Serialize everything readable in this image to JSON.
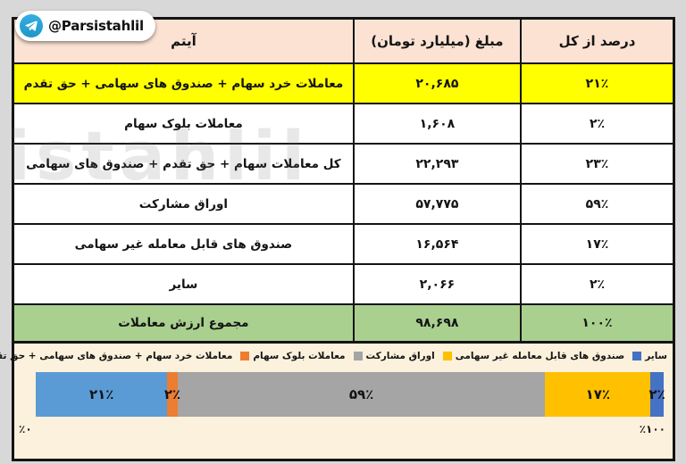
{
  "badge": {
    "handle": "@Parsistahlil"
  },
  "watermark": "istahlil",
  "colors": {
    "header_bg": "#FBE2D3",
    "highlight_row_bg": "#FFFF00",
    "total_row_bg": "#A9D08E",
    "chart_bg": "#FCF1DC",
    "page_bg": "#D8D8D8",
    "telegram_blue": "#2AA8DD"
  },
  "table": {
    "headers": {
      "item": "آیتم",
      "amount": "مبلغ (میلیارد تومان)",
      "percent": "درصد از کل"
    },
    "rows": [
      {
        "item": "معاملات خرد سهام + صندوق های سهامی + حق تقدم",
        "amount": "۲۰,۶۸۵",
        "percent": "۲۱٪"
      },
      {
        "item": "معاملات بلوک سهام",
        "amount": "۱,۶۰۸",
        "percent": "۲٪"
      },
      {
        "item": "کل معاملات سهام + حق تقدم + صندوق های سهامی",
        "amount": "۲۲,۲۹۳",
        "percent": "۲۳٪"
      },
      {
        "item": "اوراق مشارکت",
        "amount": "۵۷,۷۷۵",
        "percent": "۵۹٪"
      },
      {
        "item": "صندوق های قابل معامله غیر سهامی",
        "amount": "۱۶,۵۶۴",
        "percent": "۱۷٪"
      },
      {
        "item": "سایر",
        "amount": "۲,۰۶۶",
        "percent": "۲٪"
      }
    ],
    "total_row": {
      "item": "مجموع ارزش معاملات",
      "amount": "۹۸,۶۹۸",
      "percent": "۱۰۰٪"
    }
  },
  "chart_data": {
    "type": "bar",
    "subtype": "horizontal-stacked-100pct",
    "title": "",
    "xlabel": "",
    "ylabel": "",
    "axis": {
      "min": 0,
      "max": 100,
      "left_label": "٪۰",
      "right_label": "٪۱۰۰"
    },
    "grid": false,
    "legend_position": "top",
    "series": [
      {
        "name": "معاملات خرد سهام + صندوق های سهامی + حق تقدم",
        "value": 21,
        "label": "۲۱٪",
        "width_pct": 20.96,
        "color": "#5B9BD5"
      },
      {
        "name": "معاملات بلوک سهام",
        "value": 2,
        "label": "۲٪",
        "width_pct": 1.63,
        "color": "#ED7D31"
      },
      {
        "name": "اوراق مشارکت",
        "value": 59,
        "label": "۵۹٪",
        "width_pct": 58.54,
        "color": "#A5A5A5"
      },
      {
        "name": "صندوق های قابل معامله غیر سهامی",
        "value": 17,
        "label": "۱۷٪",
        "width_pct": 16.78,
        "color": "#FFC000"
      },
      {
        "name": "سایر",
        "value": 2,
        "label": "۲٪",
        "width_pct": 2.09,
        "color": "#4472C4"
      }
    ],
    "legend_items": [
      {
        "label": "سایر",
        "color": "#4472C4"
      },
      {
        "label": "صندوق های قابل معامله غیر سهامی",
        "color": "#FFC000"
      },
      {
        "label": "اوراق مشارکت",
        "color": "#A5A5A5"
      },
      {
        "label": "معاملات بلوک سهام",
        "color": "#ED7D31"
      },
      {
        "label": "معاملات خرد سهام + صندوق های سهامی + حق تقدم",
        "color": "#5B9BD5"
      }
    ]
  }
}
